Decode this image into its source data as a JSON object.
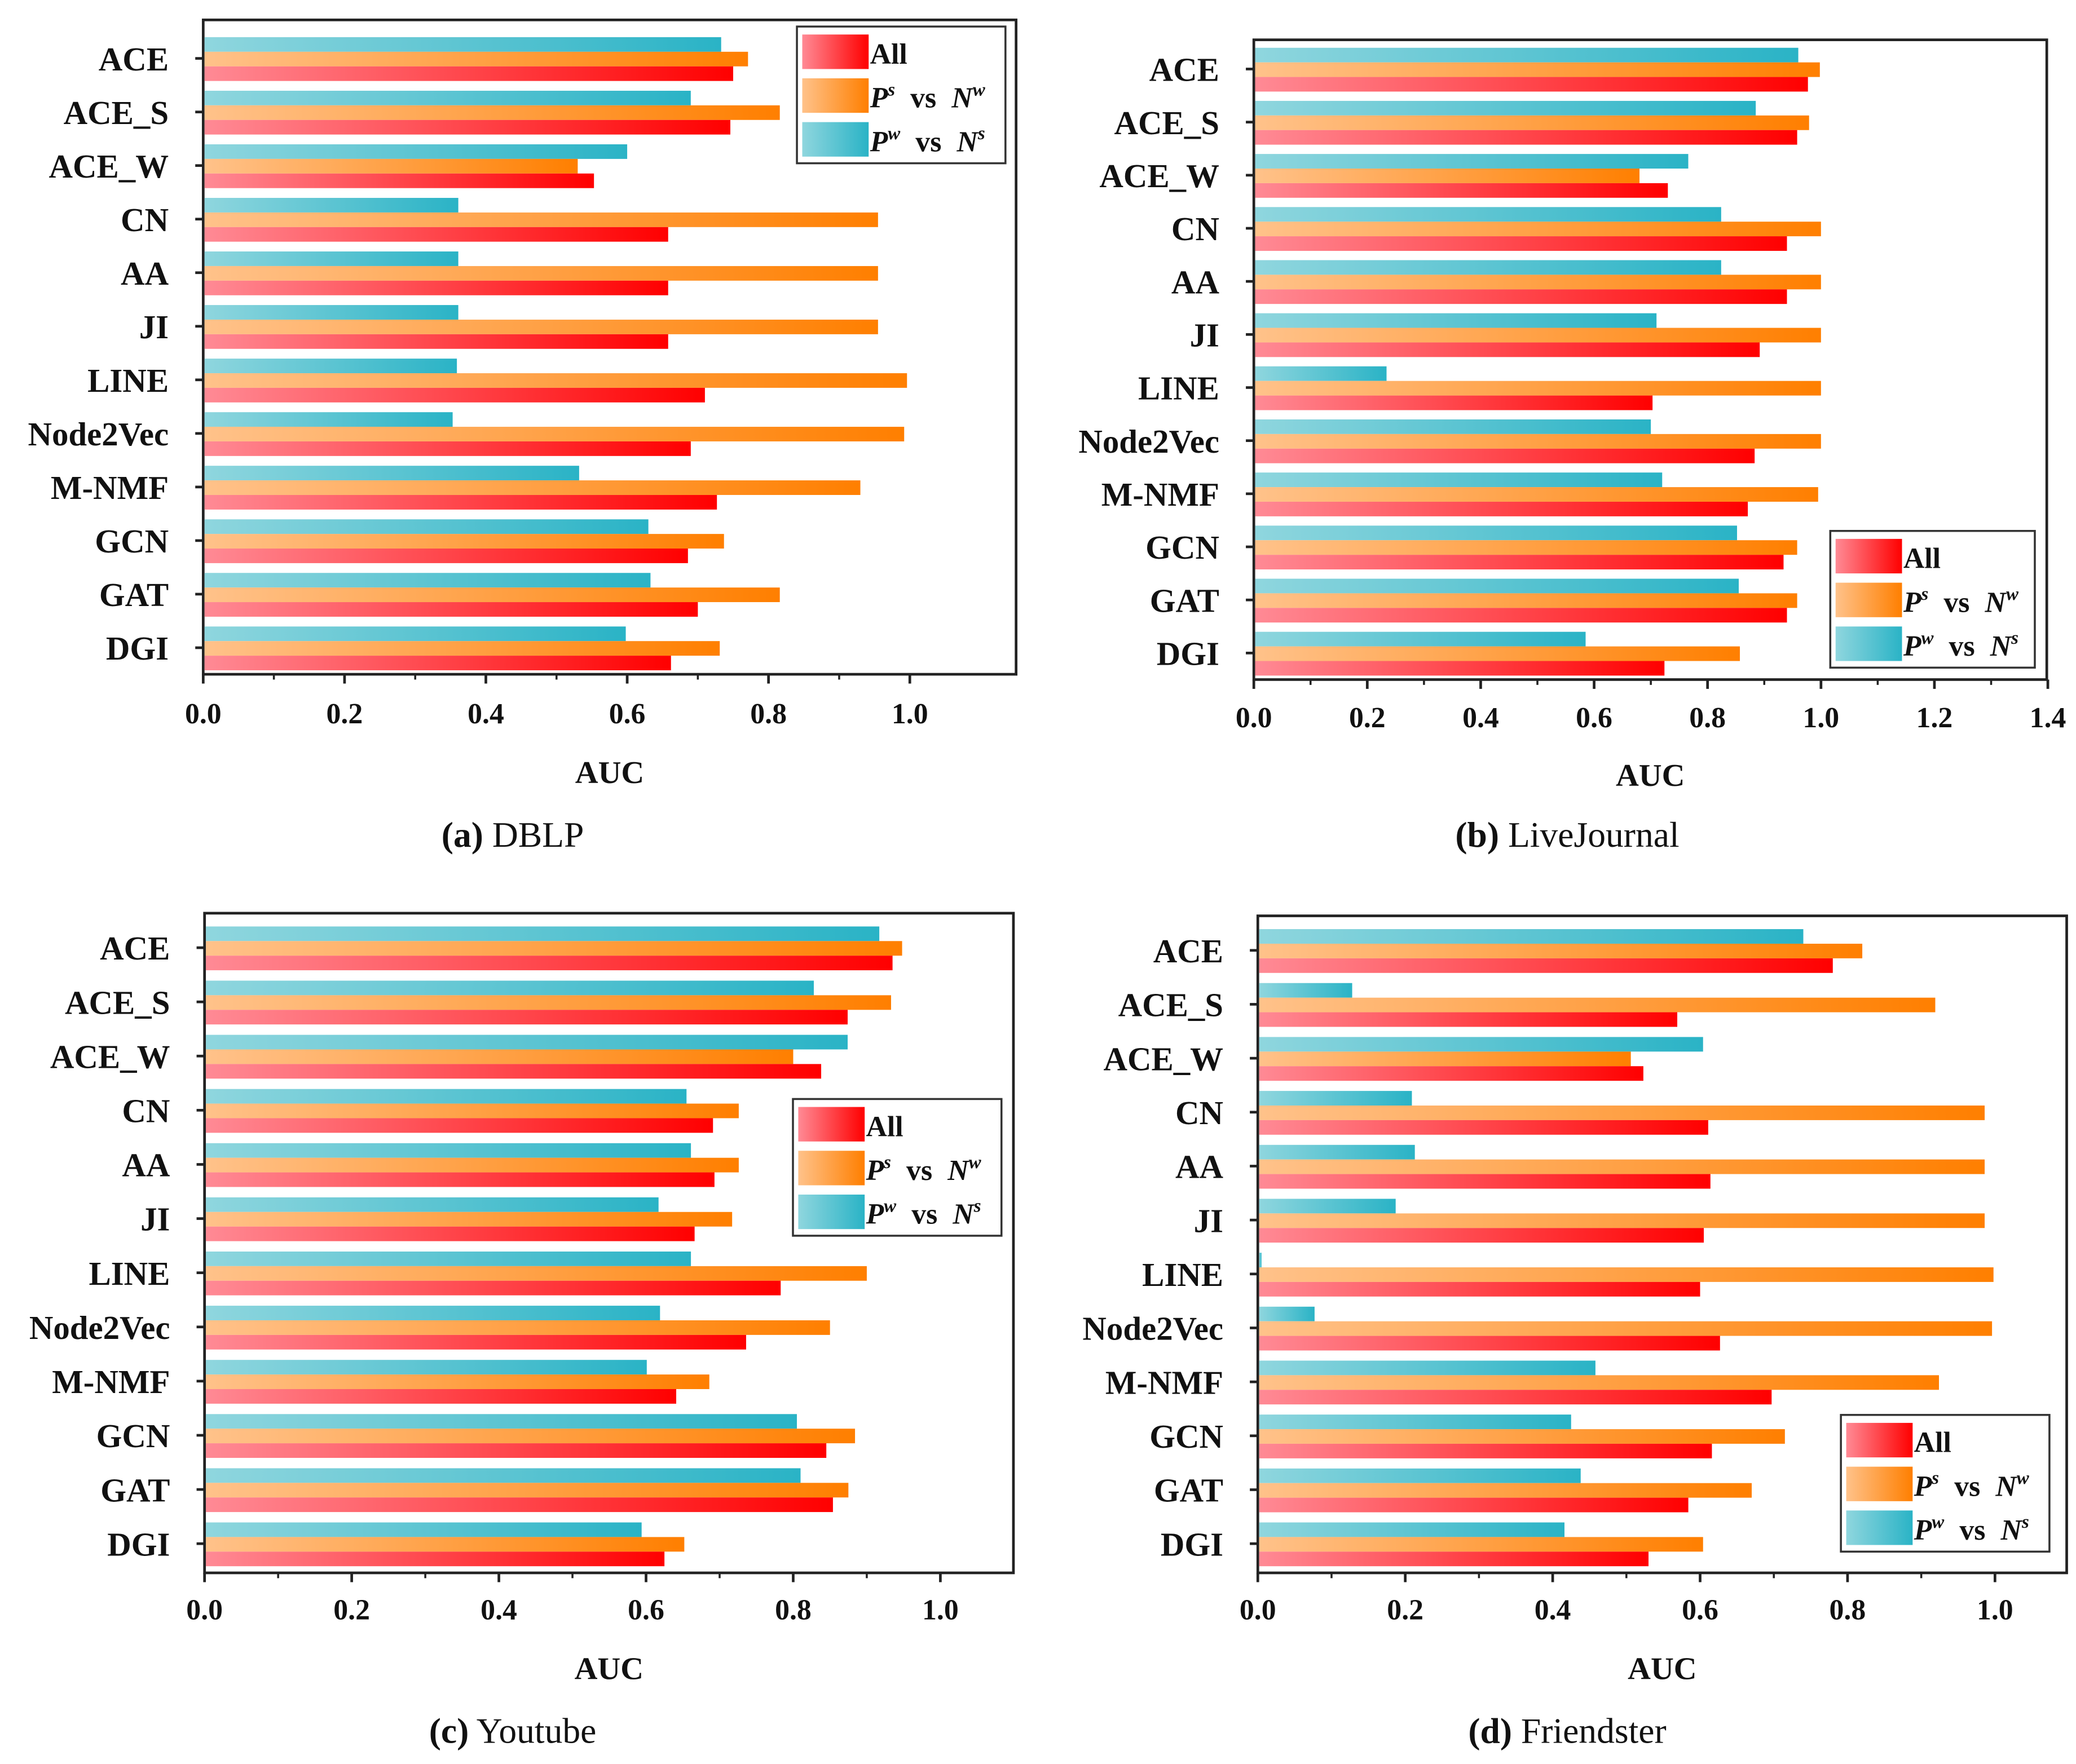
{
  "chart_data": [
    {
      "type": "bar",
      "orientation": "horizontal",
      "caption_letter": "(a)",
      "caption_text": "DBLP",
      "xlabel": "AUC",
      "xlim": [
        0,
        1.15
      ],
      "xticks": [
        "0.0",
        "0.2",
        "0.4",
        "0.6",
        "0.8",
        "1.0"
      ],
      "legend_position": "top-right",
      "categories": [
        "ACE",
        "ACE_S",
        "ACE_W",
        "CN",
        "AA",
        "JI",
        "LINE",
        "Node2Vec",
        "M-NMF",
        "GCN",
        "GAT",
        "DGI"
      ],
      "series": [
        {
          "name": "All",
          "color": "#ff0000",
          "values": [
            0.75,
            0.746,
            0.553,
            0.658,
            0.658,
            0.658,
            0.71,
            0.69,
            0.727,
            0.686,
            0.7,
            0.662
          ]
        },
        {
          "name": "P^s vs N^w",
          "color": "#ff8000",
          "values": [
            0.771,
            0.816,
            0.53,
            0.955,
            0.955,
            0.955,
            0.996,
            0.992,
            0.93,
            0.737,
            0.816,
            0.731
          ]
        },
        {
          "name": "P^w vs N^s",
          "color": "#2ab3c6",
          "values": [
            0.733,
            0.69,
            0.6,
            0.361,
            0.361,
            0.361,
            0.359,
            0.353,
            0.532,
            0.63,
            0.633,
            0.598
          ]
        }
      ]
    },
    {
      "type": "bar",
      "orientation": "horizontal",
      "caption_letter": "(b)",
      "caption_text": "LiveJournal",
      "xlabel": "AUC",
      "xlim": [
        0,
        1.4
      ],
      "xticks": [
        "0.0",
        "0.2",
        "0.4",
        "0.6",
        "0.8",
        "1.0",
        "1.2",
        "1.4"
      ],
      "legend_position": "bottom-right",
      "categories": [
        "ACE",
        "ACE_S",
        "ACE_W",
        "CN",
        "AA",
        "JI",
        "LINE",
        "Node2Vec",
        "M-NMF",
        "GCN",
        "GAT",
        "DGI"
      ],
      "series": [
        {
          "name": "All",
          "color": "#ff0000",
          "values": [
            0.977,
            0.958,
            0.73,
            0.94,
            0.94,
            0.892,
            0.703,
            0.883,
            0.871,
            0.934,
            0.94,
            0.724
          ]
        },
        {
          "name": "P^s vs N^w",
          "color": "#ff8000",
          "values": [
            0.998,
            0.979,
            0.68,
            1.0,
            1.0,
            1.0,
            1.0,
            1.0,
            0.995,
            0.958,
            0.958,
            0.857
          ]
        },
        {
          "name": "P^w vs N^s",
          "color": "#2ab3c6",
          "values": [
            0.96,
            0.885,
            0.766,
            0.824,
            0.824,
            0.71,
            0.234,
            0.7,
            0.72,
            0.852,
            0.855,
            0.585
          ]
        }
      ]
    },
    {
      "type": "bar",
      "orientation": "horizontal",
      "caption_letter": "(c)",
      "caption_text": "Youtube",
      "xlabel": "AUC",
      "xlim": [
        0,
        1.1
      ],
      "xticks": [
        "0.0",
        "0.2",
        "0.4",
        "0.6",
        "0.8",
        "1.0"
      ],
      "legend_position": "center-right",
      "categories": [
        "ACE",
        "ACE_S",
        "ACE_W",
        "CN",
        "AA",
        "JI",
        "LINE",
        "Node2Vec",
        "M-NMF",
        "GCN",
        "GAT",
        "DGI"
      ],
      "series": [
        {
          "name": "All",
          "color": "#ff0000",
          "values": [
            0.935,
            0.874,
            0.838,
            0.691,
            0.693,
            0.666,
            0.783,
            0.736,
            0.641,
            0.845,
            0.854,
            0.625
          ]
        },
        {
          "name": "P^s vs N^w",
          "color": "#ff8000",
          "values": [
            0.948,
            0.933,
            0.8,
            0.726,
            0.726,
            0.717,
            0.9,
            0.85,
            0.686,
            0.884,
            0.875,
            0.652
          ]
        },
        {
          "name": "P^w vs N^s",
          "color": "#2ab3c6",
          "values": [
            0.917,
            0.828,
            0.874,
            0.655,
            0.661,
            0.617,
            0.661,
            0.619,
            0.601,
            0.805,
            0.81,
            0.594
          ]
        }
      ]
    },
    {
      "type": "bar",
      "orientation": "horizontal",
      "caption_letter": "(d)",
      "caption_text": "Friendster",
      "xlabel": "AUC",
      "xlim": [
        0,
        1.1
      ],
      "xticks": [
        "0.0",
        "0.2",
        "0.4",
        "0.6",
        "0.8",
        "1.0"
      ],
      "legend_position": "bottom-right",
      "categories": [
        "ACE",
        "ACE_S",
        "ACE_W",
        "CN",
        "AA",
        "JI",
        "LINE",
        "Node2Vec",
        "M-NMF",
        "GCN",
        "GAT",
        "DGI"
      ],
      "series": [
        {
          "name": "All",
          "color": "#ff0000",
          "values": [
            0.78,
            0.569,
            0.523,
            0.611,
            0.614,
            0.605,
            0.6,
            0.627,
            0.697,
            0.616,
            0.584,
            0.53
          ]
        },
        {
          "name": "P^s vs N^w",
          "color": "#ff8000",
          "values": [
            0.82,
            0.919,
            0.506,
            0.986,
            0.986,
            0.986,
            0.998,
            0.996,
            0.924,
            0.715,
            0.67,
            0.604
          ]
        },
        {
          "name": "P^w vs N^s",
          "color": "#2ab3c6",
          "values": [
            0.74,
            0.128,
            0.604,
            0.209,
            0.213,
            0.187,
            0.005,
            0.077,
            0.458,
            0.425,
            0.438,
            0.416
          ]
        }
      ]
    }
  ]
}
